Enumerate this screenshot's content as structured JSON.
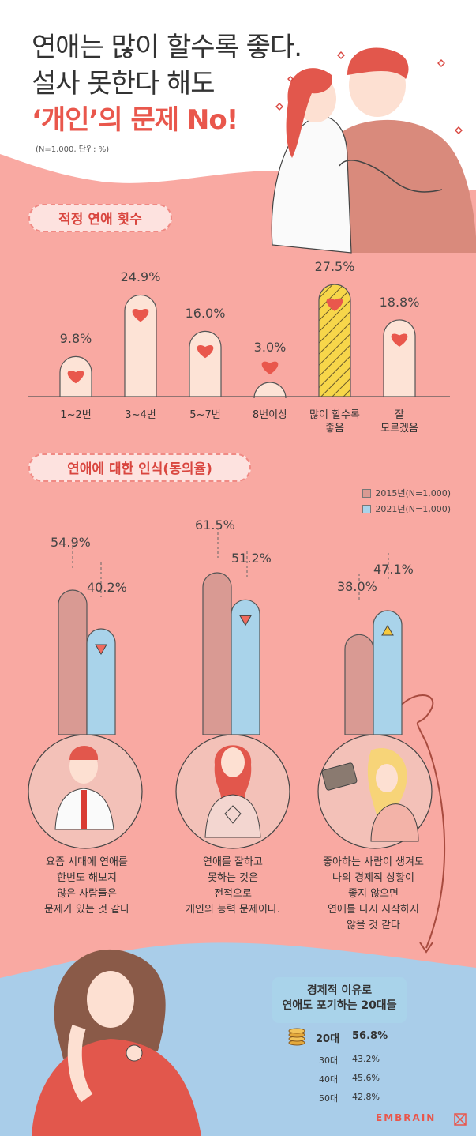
{
  "title": {
    "line1": "연애는 많이 할수록 좋다.",
    "line2": "설사 못한다 해도",
    "line3": "‘개인’의 문제 No!"
  },
  "note": "(N=1,000, 단위; %)",
  "section1": {
    "label": "적정 연애 횟수"
  },
  "section2": {
    "label": "연애에 대한 인식(동의율)"
  },
  "legend": {
    "y2015": "2015년(N=1,000)",
    "y2021": "2021년(N=1,000)"
  },
  "captions": [
    "요즘 시대에 연애를\n한번도 해보지\n않은 사람들은\n문제가 있는 것 같다",
    "연애를 잘하고\n못하는 것은\n전적으로\n개인의 능력 문제이다.",
    "좋아하는 사람이 생겨도\n나의 경제적 상황이\n좋지 않으면\n연애를 다시 시작하지\n않을 것 같다"
  ],
  "economic": {
    "title": "경제적 이유로\n연애도 포기하는 20대들",
    "rows": [
      {
        "age": "20대",
        "value": "56.8%"
      },
      {
        "age": "30대",
        "value": "43.2%"
      },
      {
        "age": "40대",
        "value": "45.6%"
      },
      {
        "age": "50대",
        "value": "42.8%"
      }
    ]
  },
  "brand": "EMBRAIN",
  "colors": {
    "background": "#f9a9a2",
    "accent": "#e9574c",
    "bar_fill": "#fde3d6",
    "highlight_fill": "#f7d64a",
    "bar_2015": "#d99a93",
    "bar_2021": "#a9d3ea",
    "bottom_blue": "#a9cde9"
  },
  "icons": [
    "heart-icon",
    "down-triangle-icon",
    "up-triangle-icon",
    "coin-stack-icon",
    "embrain-logo-icon"
  ],
  "chart_data": [
    {
      "type": "bar",
      "title": "적정 연애 횟수",
      "categories": [
        "1~2번",
        "3~4번",
        "5~7번",
        "8번이상",
        "많이 할수록\n좋음",
        "잘\n모르겠음"
      ],
      "values": [
        9.8,
        24.9,
        16.0,
        3.0,
        27.5,
        18.8
      ],
      "value_labels": [
        "9.8%",
        "24.9%",
        "16.0%",
        "3.0%",
        "27.5%",
        "18.8%"
      ],
      "highlight_index": 4,
      "ylim": [
        0,
        30
      ]
    },
    {
      "type": "bar",
      "title": "연애에 대한 인식(동의율)",
      "categories": [
        "요즘 시대에 연애를 한번도 해보지 않은 사람들은 문제가 있는 것 같다",
        "연애를 잘하고 못하는 것은 전적으로 개인의 능력 문제이다.",
        "좋아하는 사람이 생겨도 나의 경제적 상황이 좋지 않으면 연애를 다시 시작하지 않을 것 같다"
      ],
      "series": [
        {
          "name": "2015년(N=1,000)",
          "values": [
            54.9,
            61.5,
            38.0
          ],
          "labels": [
            "54.9%",
            "61.5%",
            "38.0%"
          ]
        },
        {
          "name": "2021년(N=1,000)",
          "values": [
            40.2,
            51.2,
            47.1
          ],
          "labels": [
            "40.2%",
            "51.2%",
            "47.1%"
          ]
        }
      ],
      "trend": [
        "down",
        "down",
        "up"
      ],
      "legend": "top-right"
    }
  ]
}
